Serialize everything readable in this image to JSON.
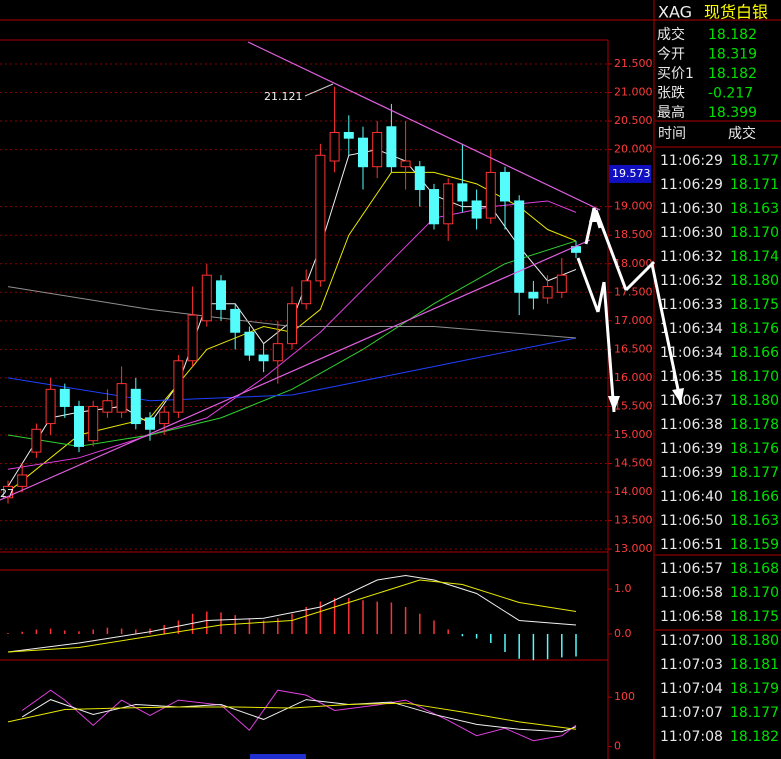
{
  "header": {
    "symbol": "XAG",
    "name": "现货白银"
  },
  "quote": {
    "rows": [
      [
        "成交",
        "18.182"
      ],
      [
        "今开",
        "18.319"
      ],
      [
        "买价1",
        "18.182"
      ],
      [
        "张跌",
        "-0.217"
      ],
      [
        "最高",
        "18.399"
      ]
    ]
  },
  "ticks_table": {
    "headers": [
      "时间",
      "成交"
    ],
    "rows": [
      [
        "11:06:29",
        "18.177"
      ],
      [
        "11:06:29",
        "18.171"
      ],
      [
        "11:06:30",
        "18.163"
      ],
      [
        "11:06:30",
        "18.170"
      ],
      [
        "11:06:32",
        "18.174"
      ],
      [
        "11:06:32",
        "18.180"
      ],
      [
        "11:06:33",
        "18.175"
      ],
      [
        "11:06:34",
        "18.176"
      ],
      [
        "11:06:34",
        "18.166"
      ],
      [
        "11:06:35",
        "18.170"
      ],
      [
        "11:06:37",
        "18.180"
      ],
      [
        "11:06:38",
        "18.178"
      ],
      [
        "11:06:39",
        "18.176"
      ],
      [
        "11:06:39",
        "18.177"
      ],
      [
        "11:06:40",
        "18.166"
      ],
      [
        "11:06:50",
        "18.163"
      ],
      [
        "11:06:51",
        "18.159"
      ],
      [
        "11:06:57",
        "18.168"
      ],
      [
        "11:06:58",
        "18.170"
      ],
      [
        "11:06:58",
        "18.175"
      ],
      [
        "11:07:00",
        "18.180"
      ],
      [
        "11:07:03",
        "18.181"
      ],
      [
        "11:07:04",
        "18.179"
      ],
      [
        "11:07:07",
        "18.177"
      ],
      [
        "11:07:08",
        "18.182"
      ]
    ]
  },
  "chart_data": [
    {
      "type": "candlestick",
      "up_color": "#ff3232",
      "down_color": "#54fcfc",
      "grid": true,
      "ylim": [
        12.95,
        21.92
      ],
      "yticks": [
        {
          "value": 13,
          "label": "13.000"
        },
        {
          "value": 13.5,
          "label": "13.500"
        },
        {
          "value": 14,
          "label": "14.000"
        },
        {
          "value": 14.5,
          "label": "14.500"
        },
        {
          "value": 15,
          "label": "15.000"
        },
        {
          "value": 15.5,
          "label": "15.500"
        },
        {
          "value": 16,
          "label": "16.000"
        },
        {
          "value": 16.5,
          "label": "16.500"
        },
        {
          "value": 17,
          "label": "17.000"
        },
        {
          "value": 17.5,
          "label": "17.500"
        },
        {
          "value": 18,
          "label": "18.000"
        },
        {
          "value": 18.5,
          "label": "18.500"
        },
        {
          "value": 19,
          "label": "19.000"
        },
        {
          "value": 20,
          "label": "20.000"
        },
        {
          "value": 20.5,
          "label": "20.500"
        },
        {
          "value": 21,
          "label": "21.000"
        },
        {
          "value": 21.5,
          "label": "21.500"
        }
      ],
      "price_tag": 19.573,
      "annotations": [
        "21.121",
        "27"
      ],
      "open": [
        13.9,
        14.1,
        14.7,
        15.2,
        15.8,
        15.5,
        14.9,
        15.4,
        15.4,
        15.8,
        15.3,
        15.2,
        15.4,
        16.3,
        17.0,
        17.7,
        17.2,
        16.8,
        16.4,
        16.3,
        16.6,
        17.3,
        17.7,
        19.8,
        20.3,
        20.2,
        19.7,
        20.4,
        19.7,
        19.7,
        19.3,
        18.7,
        19.4,
        19.1,
        18.8,
        19.6,
        19.1,
        17.5,
        17.4,
        17.5,
        18.3
      ],
      "high": [
        14.2,
        14.5,
        15.2,
        16.0,
        15.9,
        15.6,
        15.6,
        15.8,
        16.2,
        16.0,
        15.4,
        15.5,
        16.4,
        17.6,
        18.0,
        17.8,
        17.3,
        16.9,
        16.6,
        17.0,
        17.6,
        17.9,
        20.1,
        21.1,
        20.6,
        20.4,
        20.5,
        20.8,
        20.5,
        19.8,
        19.4,
        19.5,
        20.1,
        19.3,
        20.0,
        19.7,
        19.2,
        17.7,
        17.8,
        18.1,
        18.4
      ],
      "low": [
        13.8,
        14.0,
        14.6,
        15.0,
        15.3,
        14.7,
        14.8,
        15.3,
        15.3,
        15.1,
        14.9,
        15.0,
        15.3,
        16.2,
        16.9,
        17.0,
        16.5,
        16.3,
        16.1,
        15.9,
        16.5,
        17.2,
        17.6,
        19.6,
        19.9,
        19.3,
        19.5,
        19.6,
        19.3,
        19.0,
        18.6,
        18.4,
        18.9,
        18.6,
        18.7,
        18.6,
        17.1,
        17.2,
        17.3,
        17.4,
        18.1
      ],
      "close": [
        14.1,
        14.3,
        15.1,
        15.8,
        15.5,
        14.8,
        15.5,
        15.6,
        15.9,
        15.2,
        15.1,
        15.4,
        16.3,
        17.1,
        17.8,
        17.2,
        16.8,
        16.4,
        16.3,
        16.6,
        17.3,
        17.7,
        19.9,
        20.3,
        20.2,
        19.7,
        20.3,
        19.7,
        19.8,
        19.3,
        18.7,
        19.4,
        19.1,
        18.8,
        19.6,
        19.1,
        17.5,
        17.4,
        17.6,
        17.8,
        18.2
      ],
      "lines": [
        {
          "color": "#f0f0f0",
          "x": [
            0,
            3,
            5,
            8,
            10,
            12,
            14,
            16,
            18,
            20,
            22,
            24,
            26,
            28,
            30,
            32,
            34,
            36,
            38,
            40
          ],
          "values": [
            14.1,
            15.3,
            15.4,
            15.5,
            15.2,
            15.9,
            17.3,
            17.3,
            16.6,
            17.0,
            18.3,
            19.9,
            20.0,
            19.8,
            19.2,
            19.0,
            19.0,
            18.3,
            17.7,
            17.9
          ]
        },
        {
          "color": "#e8e800",
          "x": [
            0,
            5,
            10,
            14,
            18,
            20,
            22,
            24,
            27,
            30,
            33,
            36,
            38,
            40
          ],
          "values": [
            14.0,
            15.0,
            15.3,
            16.5,
            16.9,
            16.8,
            17.2,
            18.5,
            19.6,
            19.6,
            19.4,
            19.0,
            18.6,
            18.4
          ]
        },
        {
          "color": "#e040e0",
          "x": [
            0,
            5,
            10,
            14,
            18,
            22,
            26,
            30,
            34,
            38,
            40
          ],
          "values": [
            14.4,
            14.6,
            15.0,
            15.3,
            16.0,
            16.8,
            17.8,
            18.8,
            19.0,
            19.1,
            18.9
          ]
        },
        {
          "color": "#30d030",
          "x": [
            0,
            5,
            10,
            15,
            20,
            25,
            30,
            35,
            40
          ],
          "values": [
            15.0,
            14.8,
            15.0,
            15.3,
            15.8,
            16.5,
            17.3,
            18.0,
            18.4
          ]
        },
        {
          "color": "#2040ff",
          "x": [
            0,
            10,
            20,
            30,
            40
          ],
          "values": [
            16.0,
            15.6,
            15.7,
            16.2,
            16.7
          ]
        },
        {
          "color": "#909090",
          "x": [
            0,
            10,
            20,
            30,
            40
          ],
          "values": [
            17.6,
            17.2,
            16.9,
            16.9,
            16.7
          ]
        }
      ]
    },
    {
      "type": "bar",
      "up_color": "#ff3232",
      "down_color": "#54fcfc",
      "ylim": [
        -0.6,
        1.4
      ],
      "yticks": [
        {
          "value": 0,
          "label": "0.0"
        },
        {
          "value": 1,
          "label": "1.0"
        }
      ],
      "values": [
        0.02,
        0.05,
        0.1,
        0.12,
        0.08,
        0.06,
        0.1,
        0.14,
        0.12,
        0.1,
        0.12,
        0.2,
        0.3,
        0.45,
        0.5,
        0.48,
        0.42,
        0.35,
        0.3,
        0.35,
        0.45,
        0.6,
        0.72,
        0.8,
        0.8,
        0.75,
        0.72,
        0.7,
        0.6,
        0.45,
        0.3,
        0.1,
        -0.05,
        -0.1,
        -0.2,
        -0.4,
        -0.55,
        -0.58,
        -0.56,
        -0.52,
        -0.5
      ],
      "lines": [
        {
          "color": "#f0f0f0",
          "x": [
            0,
            5,
            10,
            14,
            18,
            22,
            26,
            28,
            30,
            33,
            36,
            40
          ],
          "values": [
            -0.4,
            -0.2,
            0.05,
            0.3,
            0.35,
            0.6,
            1.2,
            1.3,
            1.2,
            0.9,
            0.3,
            0.2
          ]
        },
        {
          "color": "#e8e800",
          "x": [
            0,
            5,
            10,
            15,
            20,
            25,
            29,
            32,
            36,
            40
          ],
          "values": [
            -0.4,
            -0.3,
            -0.05,
            0.2,
            0.3,
            0.8,
            1.2,
            1.1,
            0.7,
            0.5
          ]
        }
      ]
    },
    {
      "type": "line",
      "ylim": [
        -25,
        175
      ],
      "yticks": [
        0,
        100
      ],
      "lines": [
        {
          "color": "#e040e0",
          "x": [
            1,
            3,
            4,
            6,
            8,
            10,
            12,
            15,
            17,
            19,
            21,
            23,
            26,
            28,
            31,
            33,
            35,
            37,
            39,
            40
          ],
          "values": [
            73,
            114,
            94,
            43,
            94,
            63,
            94,
            84,
            33,
            114,
            104,
            73,
            84,
            94,
            53,
            22,
            37,
            12,
            22,
            43
          ]
        },
        {
          "color": "#f0f0f0",
          "x": [
            1,
            3,
            6,
            9,
            12,
            15,
            18,
            21,
            24,
            27,
            30,
            33,
            36,
            39,
            40
          ],
          "values": [
            60,
            95,
            65,
            85,
            80,
            85,
            55,
            95,
            85,
            90,
            65,
            45,
            35,
            30,
            40
          ]
        },
        {
          "color": "#e8e800",
          "x": [
            0,
            4,
            8,
            12,
            16,
            20,
            24,
            28,
            32,
            36,
            40
          ],
          "values": [
            50,
            75,
            78,
            80,
            80,
            78,
            85,
            88,
            70,
            50,
            35
          ]
        }
      ]
    }
  ]
}
